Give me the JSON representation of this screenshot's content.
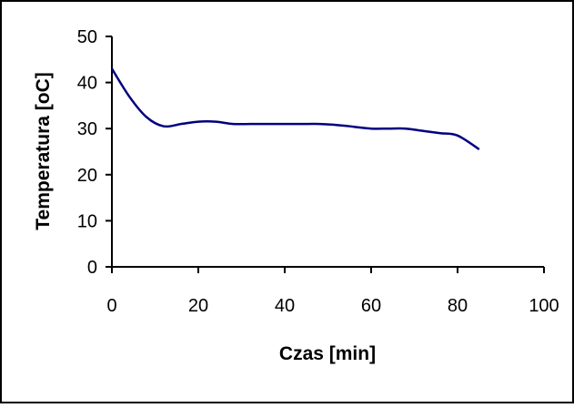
{
  "chart_data": {
    "type": "line",
    "title": "",
    "xlabel": "Czas [min]",
    "ylabel": "Temperatura [oC]",
    "xlim": [
      0,
      100
    ],
    "ylim": [
      0,
      50
    ],
    "x_ticks": [
      0,
      20,
      40,
      60,
      80,
      100
    ],
    "y_ticks": [
      0,
      10,
      20,
      30,
      40,
      50
    ],
    "x_tick_labels": [
      "0",
      "20",
      "40",
      "60",
      "80",
      "100"
    ],
    "y_tick_labels": [
      "0",
      "10",
      "20",
      "30",
      "40",
      "50"
    ],
    "grid": false,
    "legend": "none",
    "series": [
      {
        "color": "#000080",
        "x": [
          0,
          4,
          8,
          12,
          16,
          20,
          24,
          28,
          32,
          36,
          40,
          44,
          48,
          52,
          56,
          60,
          64,
          68,
          72,
          76,
          80,
          85
        ],
        "y": [
          43.0,
          37.0,
          32.5,
          30.5,
          31.0,
          31.5,
          31.5,
          31.0,
          31.0,
          31.0,
          31.0,
          31.0,
          31.0,
          30.8,
          30.4,
          30.0,
          30.0,
          30.0,
          29.5,
          29.0,
          28.5,
          25.5
        ]
      }
    ]
  }
}
